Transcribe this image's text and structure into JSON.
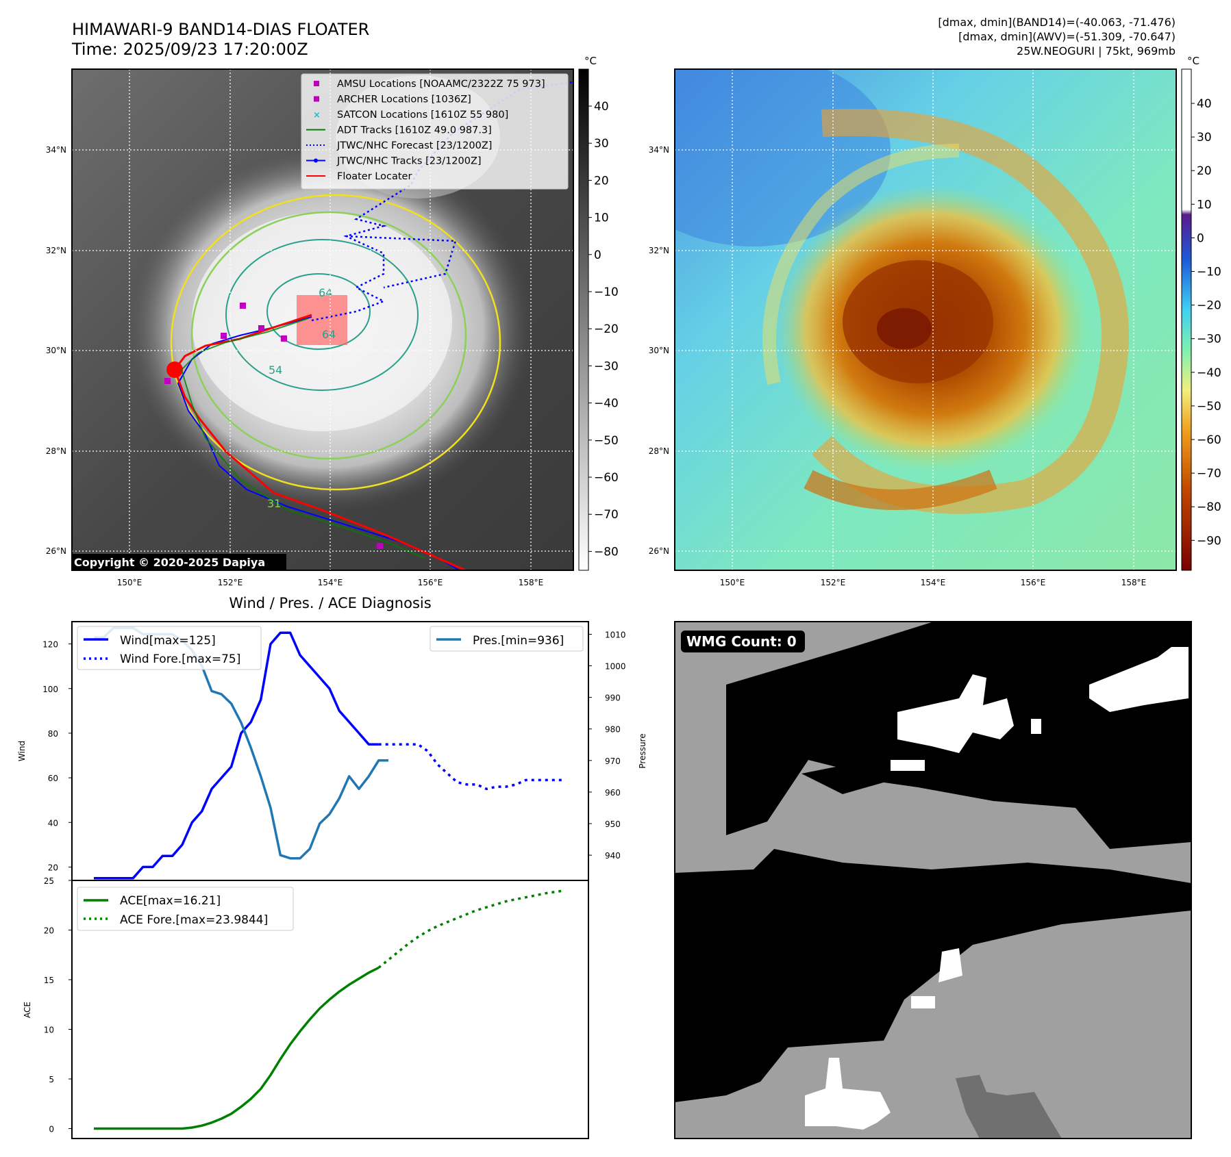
{
  "header": {
    "title_line1": "HIMAWARI-9 BAND14-DIAS FLOATER",
    "title_line2": "Time: 2025/09/23 17:20:00Z",
    "info_line1": "[dmax, dmin](BAND14)=(-40.063, -71.476)",
    "info_line2": "[dmax, dmin](AWV)=(-51.309, -70.647)",
    "info_line3": "25W.NEOGURI | 75kt, 969mb"
  },
  "ir_panel": {
    "colorbar_unit": "°C",
    "colorbar_ticks": [
      "40",
      "30",
      "20",
      "10",
      "0",
      "−10",
      "−20",
      "−30",
      "−40",
      "−50",
      "−60",
      "−70",
      "−80"
    ],
    "lat_labels": [
      "34°N",
      "32°N",
      "30°N",
      "28°N",
      "26°N"
    ],
    "lon_labels": [
      "150°E",
      "152°E",
      "154°E",
      "156°E",
      "158°E"
    ],
    "copyright": "Copyright © 2020-2025 Dapiya",
    "contour_labels": [
      "64",
      "54",
      "64",
      "31"
    ],
    "legend": [
      {
        "label": "AMSU Locations [NOAAMC/2322Z 75 973]",
        "color": "#bf00bf",
        "marker": "square"
      },
      {
        "label": "ARCHER Locations [1036Z]",
        "color": "#bf00bf",
        "marker": "square"
      },
      {
        "label": "SATCON Locations [1610Z 55 980]",
        "color": "#17becf",
        "marker": "x"
      },
      {
        "label": "ADT Tracks [1610Z 49.0 987.3]",
        "color": "#008000",
        "marker": "line"
      },
      {
        "label": "JTWC/NHC Forecast [23/1200Z]",
        "color": "#0000ff",
        "marker": "dotted"
      },
      {
        "label": "JTWC/NHC Tracks [23/1200Z]",
        "color": "#0000ff",
        "marker": "line-dot"
      },
      {
        "label": "Floater Locater",
        "color": "#ff0000",
        "marker": "line"
      }
    ]
  },
  "wv_panel": {
    "colorbar_unit": "°C",
    "colorbar_ticks": [
      "40",
      "30",
      "20",
      "10",
      "0",
      "−10",
      "−20",
      "−30",
      "−40",
      "−50",
      "−60",
      "−70",
      "−80",
      "−90"
    ],
    "lat_labels": [
      "34°N",
      "32°N",
      "30°N",
      "28°N",
      "26°N"
    ],
    "lon_labels": [
      "150°E",
      "152°E",
      "154°E",
      "156°E",
      "158°E"
    ]
  },
  "mask_panel": {
    "badge": "WMG Count: 0",
    "colors": {
      "black": "#000000",
      "gray": "#a0a0a0",
      "white": "#ffffff",
      "dark_gray": "#707070"
    }
  },
  "chart_data": [
    {
      "type": "line",
      "title": "Wind / Pres. / ACE Diagnosis",
      "ylabel": "Wind",
      "y2label": "Pressure",
      "ylim": [
        14,
        130
      ],
      "y2lim": [
        932,
        1014
      ],
      "yticks": [
        "120",
        "100",
        "80",
        "60",
        "40",
        "20"
      ],
      "y2ticks": [
        "1010",
        "1000",
        "990",
        "980",
        "970",
        "960",
        "950",
        "940"
      ],
      "series": [
        {
          "name": "Wind[max=125]",
          "color": "#0000ff",
          "style": "solid",
          "axis": "left",
          "values": [
            15,
            15,
            15,
            15,
            15,
            20,
            20,
            25,
            25,
            30,
            40,
            45,
            55,
            60,
            65,
            80,
            85,
            95,
            120,
            125,
            125,
            115,
            110,
            105,
            100,
            90,
            85,
            80,
            75,
            75
          ]
        },
        {
          "name": "Wind Fore.[max=75]",
          "color": "#0000ff",
          "style": "dotted",
          "axis": "left",
          "x_start": 29,
          "values": [
            75,
            75,
            75,
            75,
            75,
            72,
            66,
            62,
            58,
            57,
            57,
            55,
            56,
            56,
            57,
            59,
            59,
            59,
            59,
            59
          ]
        },
        {
          "name": "Pres.[min=936]",
          "color": "#1f77b4",
          "style": "solid",
          "axis": "right",
          "values": [
            1009,
            1009,
            1012,
            1012,
            1012,
            1010,
            1010,
            1010,
            1010,
            1008,
            1005,
            1000,
            992,
            991,
            988,
            982,
            974,
            965,
            955,
            940,
            939,
            939,
            942,
            950,
            953,
            958,
            965,
            961,
            965,
            970,
            970
          ]
        }
      ]
    },
    {
      "type": "line",
      "ylabel": "ACE",
      "ylim": [
        -1,
        25
      ],
      "yticks": [
        "25",
        "20",
        "15",
        "10",
        "5",
        "0"
      ],
      "series": [
        {
          "name": "ACE[max=16.21]",
          "color": "#008000",
          "style": "solid",
          "values": [
            0,
            0,
            0,
            0,
            0,
            0,
            0,
            0,
            0,
            0,
            0.1,
            0.3,
            0.6,
            1.0,
            1.5,
            2.2,
            3.0,
            4.0,
            5.4,
            7.0,
            8.5,
            9.8,
            11.0,
            12.1,
            13.0,
            13.8,
            14.5,
            15.1,
            15.7,
            16.21
          ]
        },
        {
          "name": "ACE Fore.[max=23.9844]",
          "color": "#008000",
          "style": "dotted",
          "x_start": 29,
          "values": [
            16.21,
            17.0,
            17.8,
            18.6,
            19.3,
            19.9,
            20.4,
            20.8,
            21.2,
            21.6,
            22.0,
            22.3,
            22.6,
            22.9,
            23.1,
            23.3,
            23.5,
            23.7,
            23.85,
            23.9844
          ]
        }
      ]
    }
  ]
}
